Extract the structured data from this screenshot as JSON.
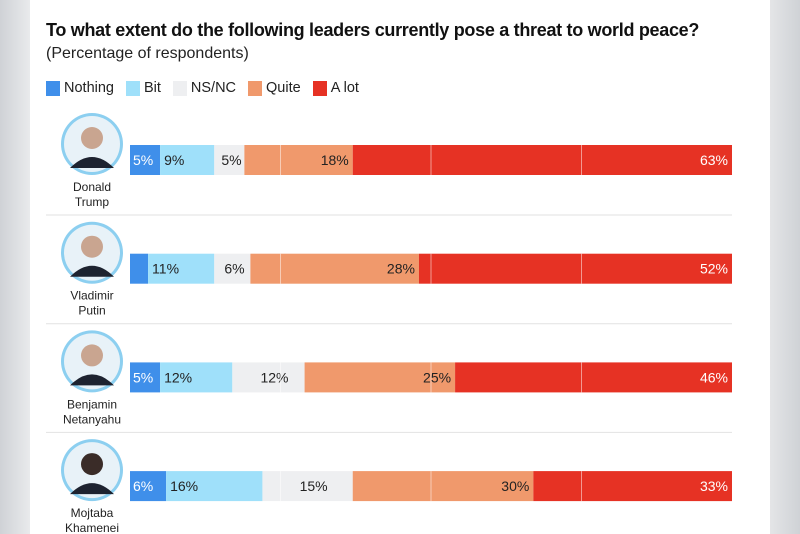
{
  "chart_data": {
    "type": "bar",
    "orientation": "horizontal-stacked",
    "title": "To what extent do the following leaders currently pose a threat to world peace?",
    "subtitle": "(Percentage of respondents)",
    "categories": [
      "Donald Trump",
      "Vladimir Putin",
      "Benjamin Netanyahu",
      "Mojtaba Khamenei"
    ],
    "category_lines": [
      [
        "Donald",
        "Trump"
      ],
      [
        "Vladimir",
        "Putin"
      ],
      [
        "Benjamin",
        "Netanyahu"
      ],
      [
        "Mojtaba",
        "Khamenei"
      ]
    ],
    "series": [
      {
        "name": "Nothing",
        "color": "#3f8fea",
        "values": [
          5,
          3,
          5,
          6
        ],
        "labels": [
          "5%",
          "",
          "5%",
          "6%"
        ]
      },
      {
        "name": "Bit",
        "color": "#9fe0fa",
        "values": [
          9,
          11,
          12,
          16
        ],
        "labels": [
          "9%",
          "11%",
          "12%",
          "16%"
        ]
      },
      {
        "name": "NS/NC",
        "color": "#eeeff1",
        "values": [
          5,
          6,
          12,
          15
        ],
        "labels": [
          "5%",
          "6%",
          "12%",
          "15%"
        ]
      },
      {
        "name": "Quite",
        "color": "#f0996c",
        "values": [
          18,
          28,
          25,
          30
        ],
        "labels": [
          "18%",
          "28%",
          "25%",
          "30%"
        ]
      },
      {
        "name": "A lot",
        "color": "#e63224",
        "values": [
          63,
          52,
          46,
          33
        ],
        "labels": [
          "63%",
          "52%",
          "46%",
          "33%"
        ]
      }
    ],
    "xlim": [
      0,
      100
    ],
    "legend": "top-left",
    "grid": true
  }
}
